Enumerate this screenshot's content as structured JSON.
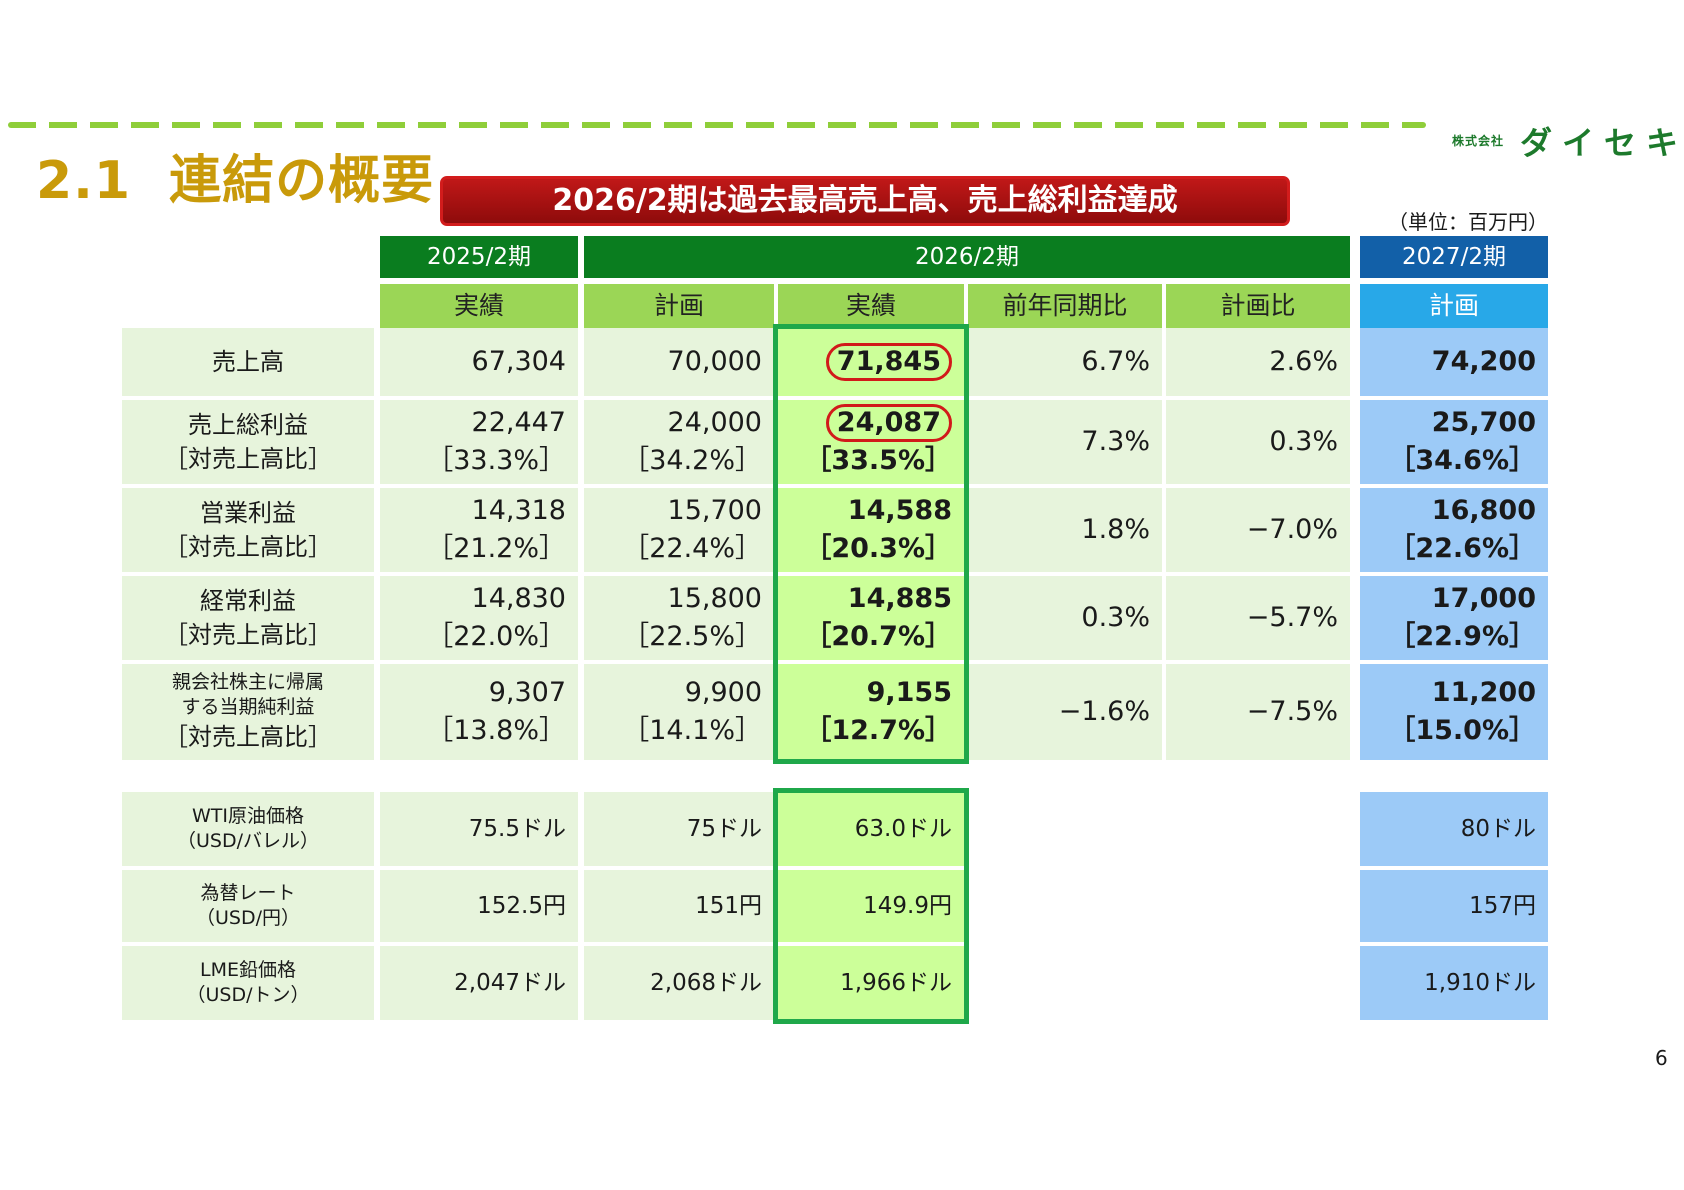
{
  "logo": {
    "company_prefix": "株式会社",
    "name": "ダイセキ"
  },
  "section": {
    "number": "2.1",
    "title": "連結の概要"
  },
  "banner": "2026/2期は過去最高売上高、売上総利益達成",
  "unit_note": "（単位：百万円）",
  "headers": {
    "fy2025": "2025/2期",
    "fy2026": "2026/2期",
    "fy2027": "2027/2期",
    "actual": "実績",
    "plan": "計画",
    "actual2": "実績",
    "yoy": "前年同期比",
    "vs_plan": "計画比",
    "plan2027": "計画"
  },
  "rows": [
    {
      "label1": "売上高",
      "label2": "",
      "fy25": "67,304",
      "fy25r": "",
      "plan": "70,000",
      "planr": "",
      "act": "71,845",
      "actr": "",
      "yoy": "6.7%",
      "vp": "2.6%",
      "p27": "74,200",
      "p27r": ""
    },
    {
      "label1": "売上総利益",
      "label2": "［対売上高比］",
      "fy25": "22,447",
      "fy25r": "［33.3%］",
      "plan": "24,000",
      "planr": "［34.2%］",
      "act": "24,087",
      "actr": "［33.5%］",
      "yoy": "7.3%",
      "vp": "0.3%",
      "p27": "25,700",
      "p27r": "［34.6%］"
    },
    {
      "label1": "営業利益",
      "label2": "［対売上高比］",
      "fy25": "14,318",
      "fy25r": "［21.2%］",
      "plan": "15,700",
      "planr": "［22.4%］",
      "act": "14,588",
      "actr": "［20.3%］",
      "yoy": "1.8%",
      "vp": "−7.0%",
      "p27": "16,800",
      "p27r": "［22.6%］"
    },
    {
      "label1": "経常利益",
      "label2": "［対売上高比］",
      "fy25": "14,830",
      "fy25r": "［22.0%］",
      "plan": "15,800",
      "planr": "［22.5%］",
      "act": "14,885",
      "actr": "［20.7%］",
      "yoy": "0.3%",
      "vp": "−5.7%",
      "p27": "17,000",
      "p27r": "［22.9%］"
    },
    {
      "label1": "親会社株主に帰属",
      "label1b": "する当期純利益",
      "label2": "［対売上高比］",
      "fy25": "9,307",
      "fy25r": "［13.8%］",
      "plan": "9,900",
      "planr": "［14.1%］",
      "act": "9,155",
      "actr": "［12.7%］",
      "yoy": "−1.6%",
      "vp": "−7.5%",
      "p27": "11,200",
      "p27r": "［15.0%］"
    }
  ],
  "market": [
    {
      "label1": "WTI原油価格",
      "label2": "（USD/バレル）",
      "fy25": "75.5ドル",
      "plan": "75ドル",
      "act": "63.0ドル",
      "p27": "80ドル"
    },
    {
      "label1": "為替レート",
      "label2": "（USD/円）",
      "fy25": "152.5円",
      "plan": "151円",
      "act": "149.9円",
      "p27": "157円"
    },
    {
      "label1": "LME鉛価格",
      "label2": "（USD/トン）",
      "fy25": "2,047ドル",
      "plan": "2,068ドル",
      "act": "1,966ドル",
      "p27": "1,910ドル"
    }
  ],
  "page_number": "6"
}
